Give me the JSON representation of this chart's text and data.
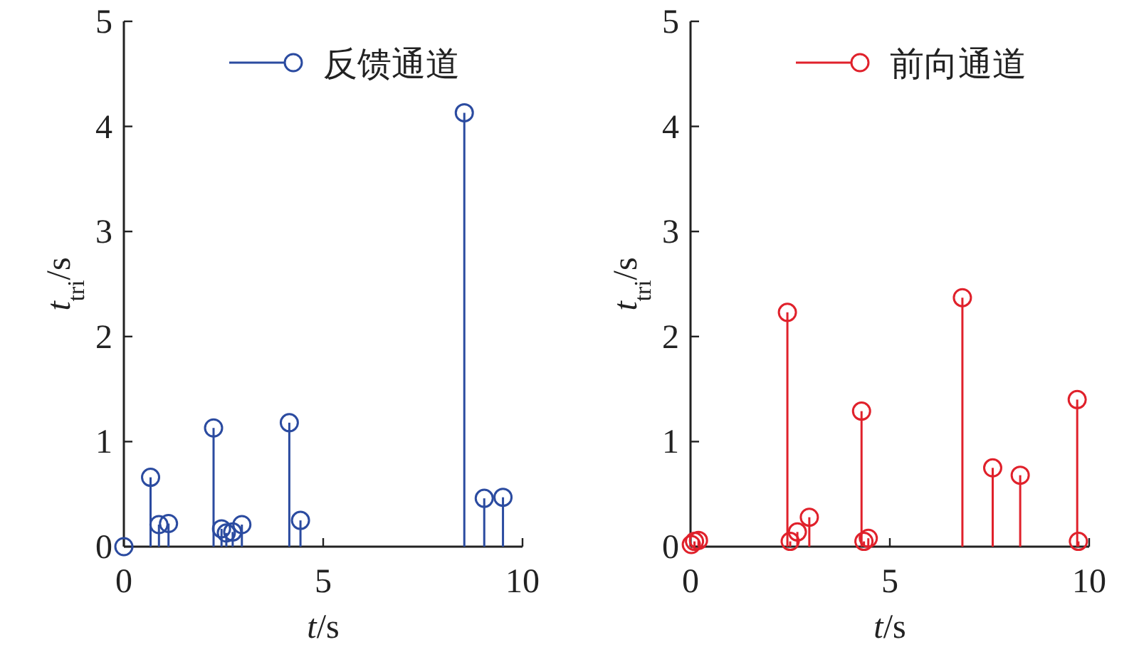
{
  "chart_data": [
    {
      "type": "lollipop",
      "xlabel": "t/s",
      "ylabel": "t$_{tri}$/s",
      "xlim": [
        0,
        10
      ],
      "ylim": [
        0,
        5
      ],
      "xticks": [
        0,
        5,
        10
      ],
      "yticks": [
        0,
        1,
        2,
        3,
        4,
        5
      ],
      "grid": false,
      "legend": "top",
      "marker": "circle",
      "series": [
        {
          "name": "反馈通道",
          "color": "#2b4ba0",
          "x": [
            0,
            0.67,
            0.88,
            1.12,
            2.25,
            2.45,
            2.57,
            2.73,
            2.96,
            4.15,
            4.43,
            8.54,
            9.04,
            9.51
          ],
          "values": [
            0,
            0.66,
            0.21,
            0.22,
            1.13,
            0.17,
            0.13,
            0.14,
            0.21,
            1.18,
            0.25,
            4.13,
            0.46,
            0.47
          ]
        }
      ]
    },
    {
      "type": "lollipop",
      "xlabel": "t/s",
      "ylabel": "t$_{tri}$/s",
      "xlim": [
        0,
        10
      ],
      "ylim": [
        0,
        5
      ],
      "xticks": [
        0,
        5,
        10
      ],
      "yticks": [
        0,
        1,
        2,
        3,
        4,
        5
      ],
      "grid": false,
      "legend": "top",
      "marker": "circle",
      "series": [
        {
          "name": "前向通道",
          "color": "#e0212b",
          "x": [
            0.02,
            0.1,
            0.2,
            2.43,
            2.5,
            2.68,
            2.98,
            4.29,
            4.35,
            4.46,
            6.82,
            7.58,
            8.27,
            9.7,
            9.73
          ],
          "values": [
            0.02,
            0.05,
            0.06,
            2.23,
            0.05,
            0.14,
            0.28,
            1.29,
            0.05,
            0.08,
            2.37,
            0.75,
            0.68,
            1.4,
            0.05
          ]
        }
      ]
    }
  ]
}
